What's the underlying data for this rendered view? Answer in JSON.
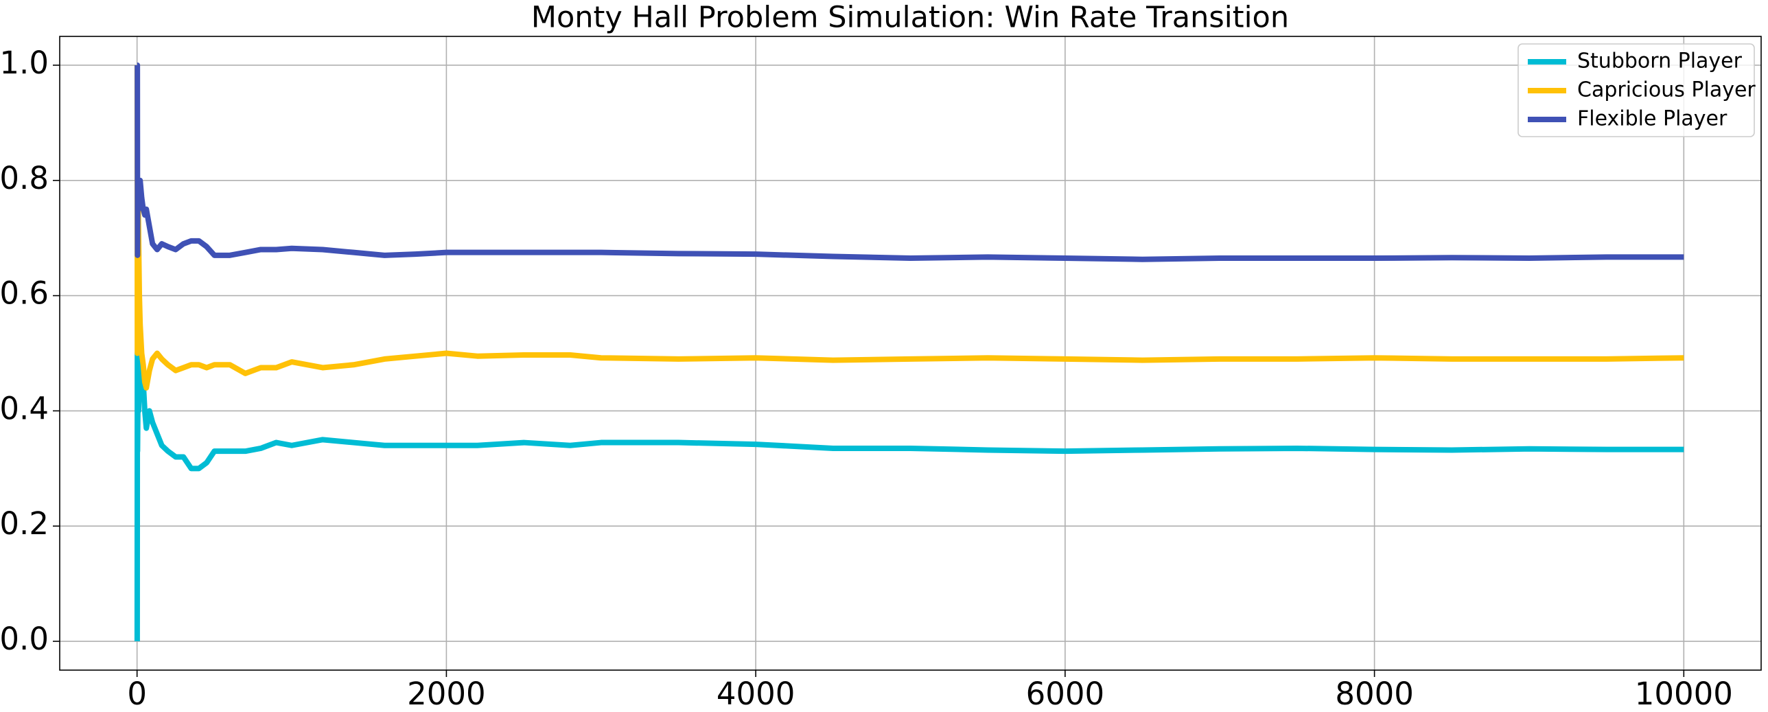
{
  "chart_data": {
    "type": "line",
    "title": "Monty Hall Problem Simulation: Win Rate Transition",
    "x": [
      1,
      2,
      3,
      5,
      8,
      10,
      15,
      20,
      30,
      40,
      50,
      60,
      80,
      100,
      130,
      160,
      200,
      250,
      300,
      350,
      400,
      450,
      500,
      600,
      700,
      800,
      900,
      1000,
      1200,
      1400,
      1600,
      1800,
      2000,
      2200,
      2500,
      2800,
      3000,
      3500,
      4000,
      4500,
      5000,
      5500,
      6000,
      6500,
      7000,
      7500,
      8000,
      8500,
      9000,
      9500,
      10000
    ],
    "series": [
      {
        "name": "Stubborn Player",
        "color": "#00bcd4",
        "values": [
          0,
          0.5,
          0.33,
          0.4,
          0.5,
          0.4,
          0.47,
          0.45,
          0.43,
          0.45,
          0.4,
          0.37,
          0.4,
          0.38,
          0.36,
          0.34,
          0.33,
          0.32,
          0.32,
          0.3,
          0.3,
          0.31,
          0.33,
          0.33,
          0.33,
          0.335,
          0.345,
          0.34,
          0.35,
          0.345,
          0.34,
          0.34,
          0.34,
          0.34,
          0.345,
          0.34,
          0.345,
          0.345,
          0.342,
          0.335,
          0.335,
          0.332,
          0.33,
          0.332,
          0.334,
          0.335,
          0.333,
          0.332,
          0.334,
          0.333,
          0.333
        ]
      },
      {
        "name": "Capricious Player",
        "color": "#ffc107",
        "values": [
          1.0,
          0.5,
          0.67,
          0.6,
          0.75,
          0.7,
          0.6,
          0.55,
          0.5,
          0.48,
          0.45,
          0.44,
          0.47,
          0.49,
          0.5,
          0.49,
          0.48,
          0.47,
          0.475,
          0.48,
          0.48,
          0.475,
          0.48,
          0.48,
          0.465,
          0.475,
          0.475,
          0.485,
          0.475,
          0.48,
          0.49,
          0.495,
          0.5,
          0.495,
          0.497,
          0.497,
          0.492,
          0.49,
          0.492,
          0.488,
          0.49,
          0.492,
          0.49,
          0.488,
          0.49,
          0.49,
          0.492,
          0.49,
          0.49,
          0.49,
          0.492
        ]
      },
      {
        "name": "Flexible Player",
        "color": "#3f51b5",
        "values": [
          1.0,
          1.0,
          0.67,
          0.8,
          0.75,
          0.8,
          0.8,
          0.8,
          0.77,
          0.75,
          0.74,
          0.75,
          0.72,
          0.69,
          0.68,
          0.69,
          0.685,
          0.68,
          0.69,
          0.695,
          0.695,
          0.685,
          0.67,
          0.67,
          0.675,
          0.68,
          0.68,
          0.682,
          0.68,
          0.675,
          0.67,
          0.672,
          0.675,
          0.675,
          0.675,
          0.675,
          0.675,
          0.673,
          0.672,
          0.668,
          0.665,
          0.667,
          0.665,
          0.663,
          0.665,
          0.665,
          0.665,
          0.666,
          0.665,
          0.667,
          0.667
        ]
      }
    ],
    "xlim": [
      -500,
      10500
    ],
    "xticks": [
      0,
      2000,
      4000,
      6000,
      8000,
      10000
    ],
    "ylim": [
      -0.05,
      1.05
    ],
    "yticks": [
      {
        "value": 0,
        "label": "0.0"
      },
      0.2,
      0.4,
      0.6,
      0.8,
      {
        "value": 1,
        "label": "1.0"
      }
    ],
    "grid": true,
    "legend": "upper right"
  }
}
